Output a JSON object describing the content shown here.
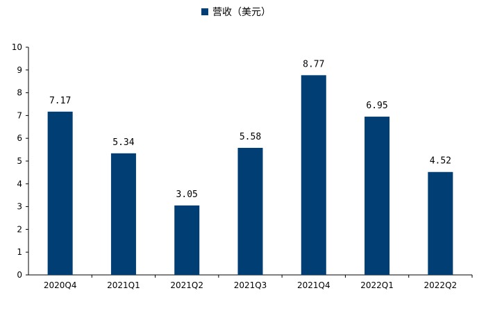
{
  "chart_data": {
    "type": "bar",
    "categories": [
      "2020Q4",
      "2021Q1",
      "2021Q2",
      "2021Q3",
      "2021Q4",
      "2022Q1",
      "2022Q2"
    ],
    "series": [
      {
        "name": "营收（美元）",
        "values": [
          7.17,
          5.34,
          3.05,
          5.58,
          8.77,
          6.95,
          4.52
        ],
        "value_labels": [
          "7.17",
          "5.34",
          "3.05",
          "5.58",
          "8.77",
          "6.95",
          "4.52"
        ],
        "color": "#003e73"
      }
    ],
    "ylim": [
      0,
      10
    ],
    "yticks": [
      "0",
      "1",
      "2",
      "3",
      "4",
      "5",
      "6",
      "7",
      "8",
      "9",
      "10"
    ],
    "grid": false,
    "legend_position": "top-center",
    "xlabel": "",
    "ylabel": ""
  }
}
